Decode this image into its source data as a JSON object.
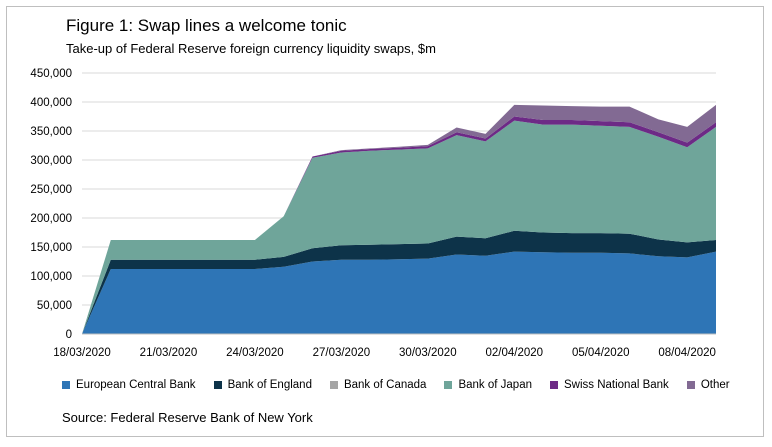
{
  "figure": {
    "title": "Figure 1: Swap lines a welcome tonic",
    "subtitle": "Take-up of Federal Reserve foreign currency liquidity swaps, $m",
    "source": "Source: Federal Reserve Bank of New York"
  },
  "chart_data": {
    "type": "area",
    "stacked": true,
    "title": "Figure 1: Swap lines a welcome tonic",
    "subtitle": "Take-up of Federal Reserve foreign currency liquidity swaps, $m",
    "xlabel": "",
    "ylabel": "",
    "ylim": [
      0,
      450000
    ],
    "yticks": [
      "450,000",
      "400,000",
      "350,000",
      "300,000",
      "250,000",
      "200,000",
      "150,000",
      "100,000",
      "50,000",
      "0"
    ],
    "xticks": [
      "18/03/2020",
      "21/03/2020",
      "24/03/2020",
      "27/03/2020",
      "30/03/2020",
      "02/04/2020",
      "05/04/2020",
      "08/04/2020"
    ],
    "grid": true,
    "legend_position": "bottom",
    "x": [
      "18/03/2020",
      "19/03/2020",
      "20/03/2020",
      "21/03/2020",
      "22/03/2020",
      "23/03/2020",
      "24/03/2020",
      "25/03/2020",
      "26/03/2020",
      "27/03/2020",
      "28/03/2020",
      "29/03/2020",
      "30/03/2020",
      "31/03/2020",
      "01/04/2020",
      "02/04/2020",
      "03/04/2020",
      "04/04/2020",
      "05/04/2020",
      "06/04/2020",
      "07/04/2020",
      "08/04/2020",
      "09/04/2020"
    ],
    "series": [
      {
        "name": "European Central Bank",
        "color": "#2e75b6",
        "values": [
          0,
          112000,
          112000,
          112000,
          112000,
          112000,
          112000,
          116000,
          125000,
          128000,
          128000,
          129000,
          130000,
          137000,
          135000,
          142000,
          141000,
          140000,
          140000,
          139000,
          134000,
          132000,
          142000
        ]
      },
      {
        "name": "Bank of England",
        "color": "#0d3349",
        "values": [
          0,
          16000,
          16000,
          16000,
          16000,
          16000,
          16000,
          17000,
          23000,
          25000,
          26000,
          26000,
          26000,
          31000,
          30000,
          36000,
          34000,
          34000,
          34000,
          34000,
          29000,
          26000,
          20000
        ]
      },
      {
        "name": "Bank of Canada",
        "color": "#a5a5a5",
        "values": [
          0,
          0,
          0,
          0,
          0,
          0,
          0,
          0,
          0,
          0,
          0,
          0,
          0,
          0,
          0,
          0,
          0,
          0,
          0,
          0,
          0,
          0,
          0
        ]
      },
      {
        "name": "Bank of Japan",
        "color": "#6fa59a",
        "values": [
          0,
          34000,
          34000,
          34000,
          34000,
          34000,
          34000,
          70000,
          156000,
          160000,
          162000,
          163000,
          164000,
          175000,
          167000,
          190000,
          186000,
          187000,
          185000,
          184000,
          177000,
          164000,
          195000
        ]
      },
      {
        "name": "Swiss National Bank",
        "color": "#6d2a86",
        "values": [
          0,
          0,
          0,
          0,
          0,
          0,
          0,
          0,
          2000,
          3000,
          3000,
          3000,
          4000,
          5000,
          5000,
          7000,
          8000,
          8000,
          8000,
          8000,
          8000,
          8000,
          8000
        ]
      },
      {
        "name": "Other",
        "color": "#826a93",
        "values": [
          0,
          0,
          0,
          0,
          0,
          0,
          0,
          0,
          0,
          1000,
          1000,
          2000,
          2000,
          8000,
          8000,
          20000,
          25000,
          24000,
          25000,
          27000,
          22000,
          27000,
          30000
        ]
      }
    ]
  }
}
